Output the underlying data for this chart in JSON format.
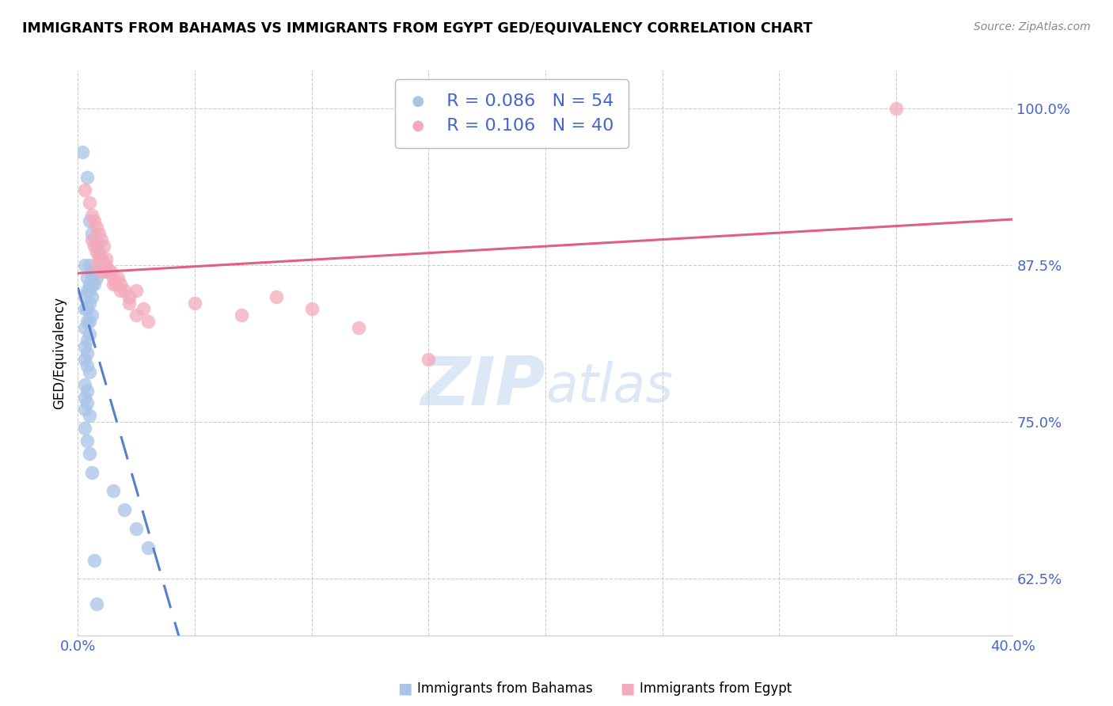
{
  "title": "IMMIGRANTS FROM BAHAMAS VS IMMIGRANTS FROM EGYPT GED/EQUIVALENCY CORRELATION CHART",
  "source": "Source: ZipAtlas.com",
  "ylabel": "GED/Equivalency",
  "yticks": [
    62.5,
    75.0,
    87.5,
    100.0
  ],
  "ytick_labels": [
    "62.5%",
    "75.0%",
    "87.5%",
    "100.0%"
  ],
  "xlim": [
    0.0,
    0.4
  ],
  "ylim": [
    58.0,
    103.0
  ],
  "legend_blue_r": "0.086",
  "legend_blue_n": "54",
  "legend_pink_r": "0.106",
  "legend_pink_n": "40",
  "blue_color": "#A8C4E8",
  "pink_color": "#F4AABB",
  "blue_line_color": "#5580CC",
  "pink_line_color": "#E06080",
  "axis_label_color": "#4466CC",
  "grid_color": "#CCCCCC",
  "watermark_text": "ZIPatlas",
  "watermark_color": "#DCE8F5",
  "bahamas_x": [
    0.002,
    0.004,
    0.005,
    0.006,
    0.007,
    0.008,
    0.009,
    0.01,
    0.011,
    0.012,
    0.003,
    0.005,
    0.006,
    0.007,
    0.008,
    0.004,
    0.006,
    0.005,
    0.007,
    0.006,
    0.004,
    0.005,
    0.003,
    0.006,
    0.005,
    0.004,
    0.003,
    0.006,
    0.005,
    0.004,
    0.003,
    0.005,
    0.004,
    0.003,
    0.004,
    0.003,
    0.004,
    0.005,
    0.003,
    0.004,
    0.003,
    0.004,
    0.003,
    0.005,
    0.003,
    0.004,
    0.005,
    0.006,
    0.015,
    0.02,
    0.025,
    0.03,
    0.007,
    0.008
  ],
  "bahamas_y": [
    96.5,
    94.5,
    91.0,
    90.0,
    89.5,
    89.0,
    88.5,
    88.0,
    87.5,
    87.0,
    87.5,
    87.5,
    87.0,
    87.0,
    86.5,
    86.5,
    86.5,
    86.0,
    86.0,
    86.0,
    85.5,
    85.5,
    85.0,
    85.0,
    84.5,
    84.0,
    84.0,
    83.5,
    83.0,
    83.0,
    82.5,
    82.0,
    81.5,
    81.0,
    80.5,
    80.0,
    79.5,
    79.0,
    78.0,
    77.5,
    77.0,
    76.5,
    76.0,
    75.5,
    74.5,
    73.5,
    72.5,
    71.0,
    69.5,
    68.0,
    66.5,
    65.0,
    64.0,
    60.5
  ],
  "egypt_x": [
    0.003,
    0.005,
    0.006,
    0.007,
    0.008,
    0.009,
    0.01,
    0.011,
    0.006,
    0.007,
    0.008,
    0.009,
    0.01,
    0.011,
    0.012,
    0.013,
    0.014,
    0.015,
    0.016,
    0.017,
    0.018,
    0.02,
    0.022,
    0.025,
    0.028,
    0.012,
    0.01,
    0.008,
    0.015,
    0.018,
    0.022,
    0.025,
    0.03,
    0.05,
    0.07,
    0.085,
    0.1,
    0.12,
    0.15,
    0.35
  ],
  "egypt_y": [
    93.5,
    92.5,
    91.5,
    91.0,
    90.5,
    90.0,
    89.5,
    89.0,
    89.5,
    89.0,
    88.5,
    88.0,
    88.0,
    87.5,
    87.5,
    87.0,
    87.0,
    86.5,
    86.0,
    86.5,
    86.0,
    85.5,
    85.0,
    85.5,
    84.0,
    88.0,
    87.0,
    87.5,
    86.0,
    85.5,
    84.5,
    83.5,
    83.0,
    84.5,
    83.5,
    85.0,
    84.0,
    82.5,
    80.0,
    100.0
  ]
}
